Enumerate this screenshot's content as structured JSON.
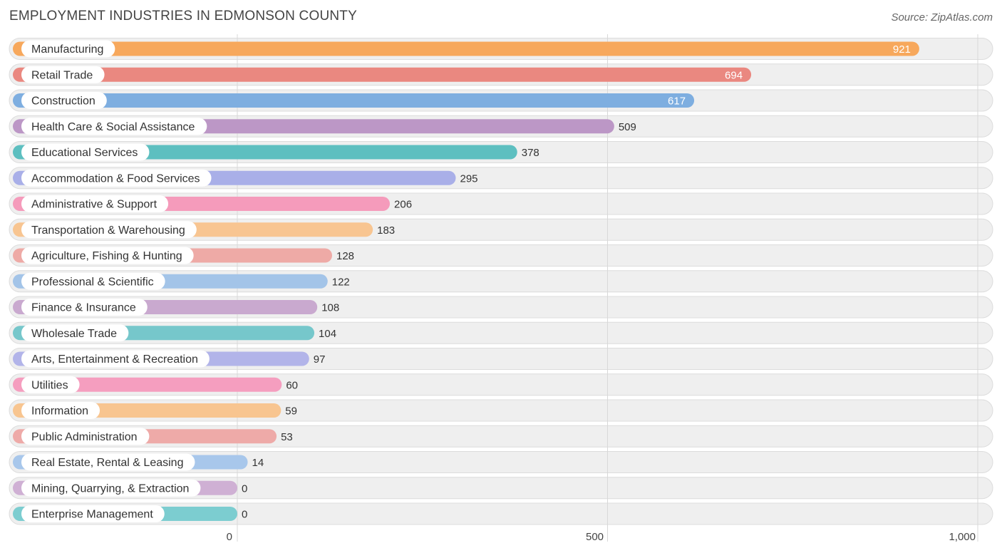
{
  "header": {
    "title": "EMPLOYMENT INDUSTRIES IN EDMONSON COUNTY",
    "source": "Source: ZipAtlas.com"
  },
  "chart_data": {
    "type": "bar",
    "orientation": "horizontal",
    "title": "EMPLOYMENT INDUSTRIES IN EDMONSON COUNTY",
    "xlabel": "",
    "ylabel": "",
    "xlim": [
      0,
      1000
    ],
    "x_ticks": [
      0,
      500,
      1000
    ],
    "x_tick_labels": [
      "0",
      "500",
      "1,000"
    ],
    "grid": true,
    "categories": [
      "Manufacturing",
      "Retail Trade",
      "Construction",
      "Health Care & Social Assistance",
      "Educational Services",
      "Accommodation & Food Services",
      "Administrative & Support",
      "Transportation & Warehousing",
      "Agriculture, Fishing & Hunting",
      "Professional & Scientific",
      "Finance & Insurance",
      "Wholesale Trade",
      "Arts, Entertainment & Recreation",
      "Utilities",
      "Information",
      "Public Administration",
      "Real Estate, Rental & Leasing",
      "Mining, Quarrying, & Extraction",
      "Enterprise Management"
    ],
    "values": [
      921,
      694,
      617,
      509,
      378,
      295,
      206,
      183,
      128,
      122,
      108,
      104,
      97,
      60,
      59,
      53,
      14,
      0,
      0
    ],
    "colors": [
      "#f7a85c",
      "#ea8880",
      "#7eaee0",
      "#bc97c6",
      "#5dbfc0",
      "#a9afe8",
      "#f59bbb",
      "#f8c591",
      "#eeaaa6",
      "#a3c4e8",
      "#c9a9cf",
      "#76c7cb",
      "#b2b4e9",
      "#f59ebf",
      "#f8c590",
      "#eeaaa8",
      "#a8c7eb",
      "#cfb0d4",
      "#7ccdd0"
    ]
  }
}
